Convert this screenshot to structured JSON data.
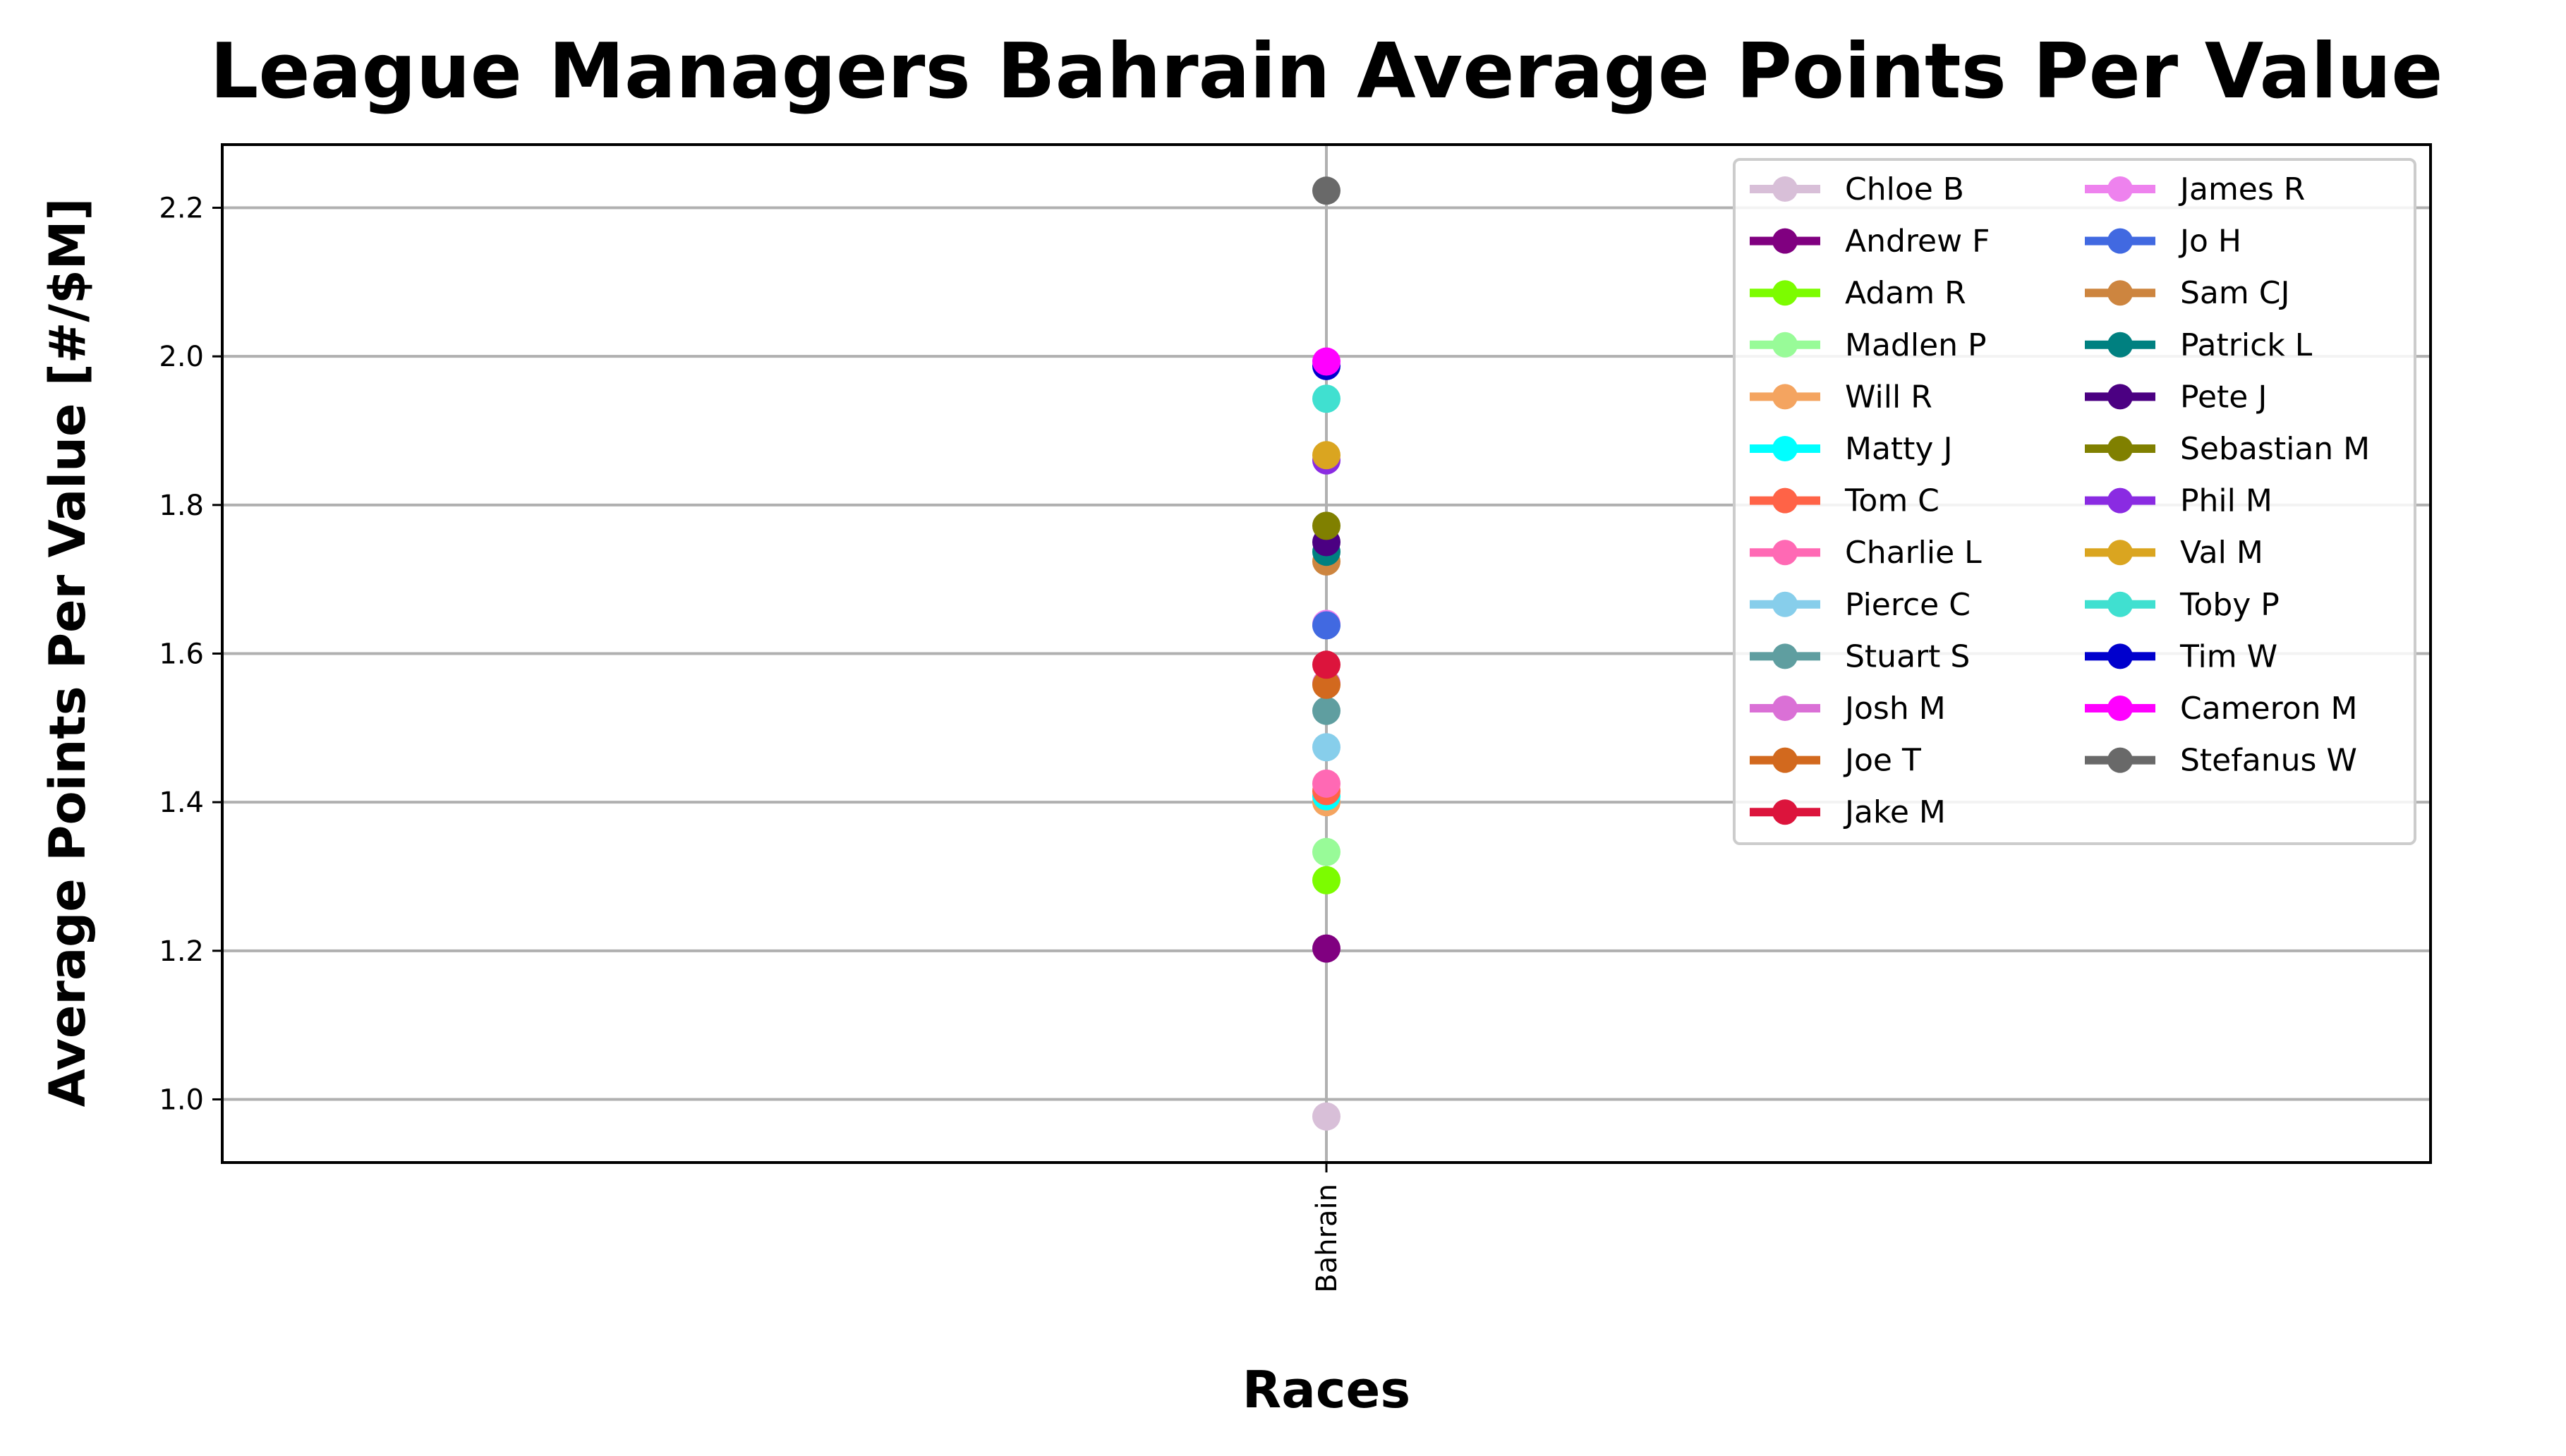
{
  "chart_data": {
    "type": "line",
    "title": "League Managers Bahrain Average Points Per Value",
    "xlabel": "Races",
    "ylabel": "Average Points Per Value [#/$M]",
    "categories": [
      "Bahrain"
    ],
    "ylim": [
      0.915,
      2.285
    ],
    "yticks": [
      1.0,
      1.2,
      1.4,
      1.6,
      1.8,
      2.0,
      2.2
    ],
    "ytick_labels": [
      "1.0",
      "1.2",
      "1.4",
      "1.6",
      "1.8",
      "2.0",
      "2.2"
    ],
    "grid": true,
    "legend_position": "top-right",
    "legend_columns": 2,
    "series": [
      {
        "name": "Chloe B",
        "color": "#d8bfd8",
        "values": [
          0.977
        ]
      },
      {
        "name": "Andrew F",
        "color": "#800080",
        "values": [
          1.203
        ]
      },
      {
        "name": "Adam R",
        "color": "#7cfc00",
        "values": [
          1.295
        ]
      },
      {
        "name": "Madlen P",
        "color": "#98fb98",
        "values": [
          1.333
        ]
      },
      {
        "name": "Will R",
        "color": "#f4a460",
        "values": [
          1.4
        ]
      },
      {
        "name": "Matty J",
        "color": "#00ffff",
        "values": [
          1.408
        ]
      },
      {
        "name": "Tom C",
        "color": "#ff6347",
        "values": [
          1.415
        ]
      },
      {
        "name": "Charlie L",
        "color": "#ff69b4",
        "values": [
          1.425
        ]
      },
      {
        "name": "Pierce C",
        "color": "#87ceeb",
        "values": [
          1.474
        ]
      },
      {
        "name": "Stuart S",
        "color": "#5f9ea0",
        "values": [
          1.523
        ]
      },
      {
        "name": "Josh M",
        "color": "#da70d6",
        "values": [
          1.56
        ]
      },
      {
        "name": "Joe T",
        "color": "#d2691e",
        "values": [
          1.558
        ]
      },
      {
        "name": "Jake M",
        "color": "#dc143c",
        "values": [
          1.585
        ]
      },
      {
        "name": "James R",
        "color": "#ee82ee",
        "values": [
          1.64
        ]
      },
      {
        "name": "Jo H",
        "color": "#4169e1",
        "values": [
          1.638
        ]
      },
      {
        "name": "Sam CJ",
        "color": "#cd853f",
        "values": [
          1.724
        ]
      },
      {
        "name": "Patrick L",
        "color": "#008080",
        "values": [
          1.737
        ]
      },
      {
        "name": "Pete J",
        "color": "#4b0082",
        "values": [
          1.75
        ]
      },
      {
        "name": "Sebastian M",
        "color": "#808000",
        "values": [
          1.772
        ]
      },
      {
        "name": "Phil M",
        "color": "#8a2be2",
        "values": [
          1.86
        ]
      },
      {
        "name": "Val M",
        "color": "#daa520",
        "values": [
          1.867
        ]
      },
      {
        "name": "Toby P",
        "color": "#40e0d0",
        "values": [
          1.943
        ]
      },
      {
        "name": "Tim W",
        "color": "#0000cd",
        "values": [
          1.987
        ]
      },
      {
        "name": "Cameron M",
        "color": "#ff00ff",
        "values": [
          1.993
        ]
      },
      {
        "name": "Stefanus W",
        "color": "#696969",
        "values": [
          2.223
        ]
      }
    ]
  }
}
